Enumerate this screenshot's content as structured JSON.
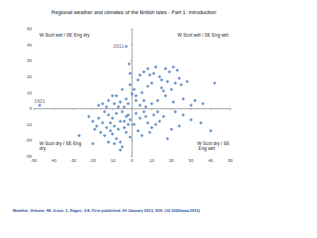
{
  "chart_data": {
    "type": "scatter",
    "title": "Regional weather and climates of the British Isles - Part 1: Introduction",
    "footer": "Weather, Volume: 68, Issue: 1, Pages: 3-8, First published: 04 January 2013, DOI: (10.1002/wea.2041)",
    "quadrant_labels": {
      "top_left": "W Scot wet / SE Eng dry",
      "top_right": "W Scot wet / SE Eng wet",
      "bottom_left": "W Scot dry / SE Eng dry",
      "bottom_right": "W Scot dry / SE Eng wet"
    },
    "annotations": [
      {
        "text": "2011",
        "x": -3,
        "y": 39
      },
      {
        "text": "1921",
        "x": -47,
        "y": 2
      }
    ],
    "x": [
      -3,
      -1.5,
      -1,
      -47,
      -5,
      -8,
      -10,
      -12,
      -15,
      -9,
      -6,
      -3,
      -2,
      -4,
      -7,
      -13,
      -17,
      -14,
      -12,
      -10,
      -8,
      -6,
      -5,
      -3,
      -2,
      -4,
      -7,
      -9,
      -11,
      -13,
      -15,
      -18,
      -20,
      -22,
      -16,
      -14,
      -10,
      -8,
      -6,
      -5,
      -9,
      -12,
      -20,
      -27,
      -3,
      -1,
      -2,
      -1,
      -6,
      -11,
      -17,
      -19,
      -4,
      2,
      4,
      6,
      8,
      10,
      12,
      14,
      3,
      5,
      9,
      16,
      20,
      24,
      26,
      30,
      35,
      40,
      18,
      11,
      1,
      7,
      13,
      22,
      1,
      3,
      0,
      2,
      -1,
      5,
      6,
      8,
      4,
      12,
      10,
      15,
      17,
      19,
      21,
      23,
      24,
      22,
      25,
      18,
      20,
      16,
      15,
      14,
      11,
      9,
      8,
      13,
      17,
      21,
      26,
      28,
      42,
      32,
      36,
      30,
      10,
      6,
      4,
      2,
      7
    ],
    "y": [
      39,
      28,
      22,
      2,
      12,
      8,
      8,
      5,
      3,
      3,
      4,
      6,
      3,
      1,
      1,
      1,
      2,
      -2,
      -4,
      -6,
      -3,
      -8,
      -2,
      -5,
      -10,
      -12,
      -13,
      -11,
      -9,
      -12,
      -9,
      -11,
      -8,
      -5,
      -15,
      -17,
      -16,
      -19,
      -21,
      -24,
      -22,
      -21,
      -22,
      -17,
      -15,
      -18,
      -4,
      -7,
      -26,
      -14,
      -6,
      -13,
      -8,
      -3,
      -6,
      -2,
      -9,
      -12,
      -10,
      -8,
      -14,
      -17,
      -15,
      -5,
      -13,
      -11,
      -4,
      -7,
      -9,
      -14,
      -19,
      -4,
      -10,
      -5,
      -2,
      -2,
      12,
      18,
      9,
      5,
      15,
      10,
      23,
      25,
      21,
      26,
      16,
      13,
      25,
      23,
      26,
      24,
      19,
      16,
      15,
      17,
      12,
      11,
      18,
      20,
      22,
      21,
      14,
      5,
      8,
      4,
      6,
      17,
      16,
      5,
      3,
      2,
      3,
      5,
      2,
      8,
      1
    ],
    "color": "#4a7ebb",
    "marker": "diamond",
    "xlim": [
      -50,
      50
    ],
    "xticks": [
      -50,
      -40,
      -30,
      -20,
      -10,
      0,
      10,
      20,
      30,
      40,
      50
    ],
    "ylim": [
      -30,
      50
    ],
    "yticks": [
      -30,
      -20,
      -10,
      0,
      10,
      20,
      30,
      40,
      50
    ],
    "grid": false
  }
}
